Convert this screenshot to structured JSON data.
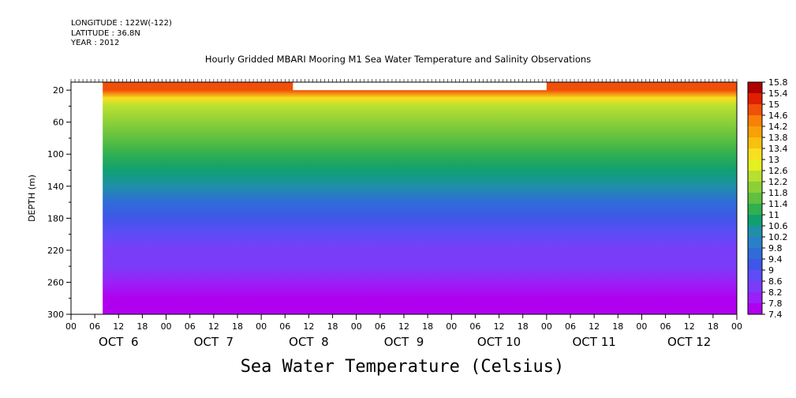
{
  "header": {
    "longitude": "LONGITUDE : 122W(-122)",
    "latitude": "LATITUDE : 36.8N",
    "year": "YEAR : 2012"
  },
  "chart_data": {
    "type": "heatmap",
    "title": "Hourly Gridded MBARI Mooring M1 Sea Water Temperature and Salinity Observations",
    "xlabel": "Sea Water Temperature (Celsius)",
    "ylabel": "DEPTH (m)",
    "ylim": [
      300,
      10
    ],
    "x_range_hours": [
      0,
      168
    ],
    "data_start_hour": 8,
    "surface_gap": {
      "from_hour": 56,
      "to_hour": 120,
      "top_depth": 10,
      "bottom_depth": 20
    },
    "y_ticks": [
      20,
      60,
      100,
      140,
      180,
      220,
      260,
      300
    ],
    "x_hour_tick_labels": [
      "00",
      "06",
      "12",
      "18",
      "00",
      "06",
      "12",
      "18",
      "00",
      "06",
      "12",
      "18",
      "00",
      "06",
      "12",
      "18",
      "00",
      "06",
      "12",
      "18",
      "00",
      "06",
      "12",
      "18",
      "00",
      "06",
      "12",
      "18",
      "00"
    ],
    "day_labels": [
      "OCT  6",
      "OCT  7",
      "OCT  8",
      "OCT  9",
      "OCT 10",
      "OCT 11",
      "OCT 12"
    ],
    "colorbar": {
      "levels": [
        7.4,
        7.8,
        8.2,
        8.6,
        9,
        9.4,
        9.8,
        10.2,
        10.6,
        11,
        11.4,
        11.8,
        12.2,
        12.6,
        13,
        13.4,
        13.8,
        14.2,
        14.6,
        15,
        15.4,
        15.8
      ],
      "colors": [
        "#b000f0",
        "#9a20f8",
        "#7a3cf8",
        "#5e4cf6",
        "#4056e8",
        "#2f6cd8",
        "#2a80c8",
        "#1f90a8",
        "#10a070",
        "#30b050",
        "#60c040",
        "#8cd038",
        "#b8e030",
        "#e4f020",
        "#f8e020",
        "#f8c010",
        "#f8a008",
        "#f88008",
        "#f05008",
        "#e02000",
        "#b00000"
      ]
    },
    "profile_depth": [
      20,
      30,
      40,
      60,
      80,
      100,
      120,
      140,
      160,
      180,
      200,
      220,
      240,
      260,
      280,
      300
    ],
    "profile_temperature": [
      14.8,
      13.2,
      12.2,
      11.8,
      11.5,
      11.1,
      10.7,
      10.2,
      9.7,
      9.2,
      8.8,
      8.5,
      8.2,
      7.9,
      7.7,
      7.5
    ]
  }
}
